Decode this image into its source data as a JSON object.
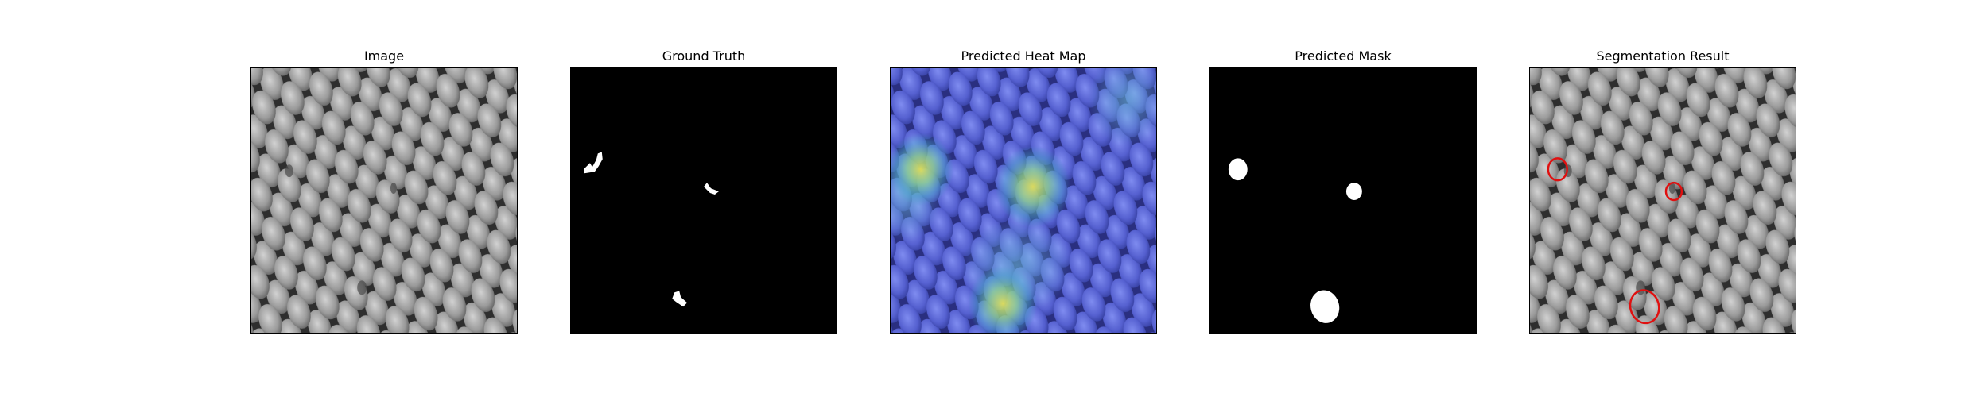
{
  "panels": [
    {
      "title": "Image"
    },
    {
      "title": "Ground Truth"
    },
    {
      "title": "Predicted Heat Map"
    },
    {
      "title": "Predicted Mask"
    },
    {
      "title": "Segmentation Result"
    }
  ],
  "colors": {
    "mesh_dark": "#3a3a3a",
    "mesh_light": "#a9a9a9",
    "mask_white": "#ffffff",
    "background_black": "#000000",
    "heat_low": "#3f4fc0",
    "heat_high": "#d8e060",
    "contour_red": "#e01010"
  }
}
